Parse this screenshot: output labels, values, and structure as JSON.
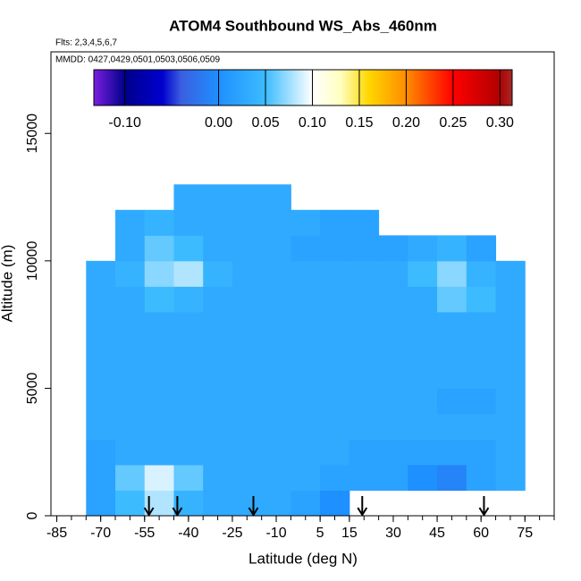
{
  "chart_data": {
    "type": "heatmap",
    "title": "ATOM4 Southbound WS_Abs_460nm",
    "subtitle": "Flts: 2,3,4,5,6,7",
    "annotation": "MMDD: 0427,0429,0501,0503,0506,0509",
    "xlabel": "Latitude (deg N)",
    "ylabel": "Altitude (m)",
    "xlim": [
      -87,
      85
    ],
    "ylim": [
      0,
      18200
    ],
    "xticks": [
      -85,
      -70,
      -55,
      -40,
      -25,
      -10,
      5,
      15,
      30,
      45,
      60,
      75
    ],
    "xminorticks": [
      -85,
      -80,
      -75,
      -70,
      -65,
      -60,
      -55,
      -50,
      -45,
      -40,
      -35,
      -30,
      -25,
      -20,
      -15,
      -10,
      -5,
      0,
      5,
      10,
      15,
      20,
      25,
      30,
      35,
      40,
      45,
      50,
      55,
      60,
      65,
      70,
      75,
      80,
      85
    ],
    "yticks": [
      0,
      5000,
      10000,
      15000
    ],
    "x_edges": [
      -75,
      -65,
      -55,
      -45,
      -35,
      -25,
      -15,
      -5,
      5,
      15,
      25,
      35,
      45,
      55,
      65,
      75
    ],
    "y_edges": [
      0,
      1000,
      2000,
      3000,
      4000,
      5000,
      6000,
      7000,
      8000,
      9000,
      10000,
      11000,
      12000,
      13000
    ],
    "z": [
      [
        0.02,
        0.05,
        0.08,
        0.04,
        0.03,
        0.03,
        0.03,
        0.02,
        0.0,
        null,
        null,
        null,
        null,
        null,
        null
      ],
      [
        0.02,
        0.06,
        0.09,
        0.06,
        0.03,
        0.03,
        0.03,
        0.03,
        0.02,
        0.02,
        0.02,
        0.0,
        -0.01,
        0.02,
        0.03
      ],
      [
        0.02,
        0.03,
        0.03,
        0.03,
        0.03,
        0.03,
        0.03,
        0.03,
        0.03,
        0.02,
        0.02,
        0.02,
        0.02,
        0.02,
        0.03
      ],
      [
        0.03,
        0.03,
        0.03,
        0.03,
        0.03,
        0.03,
        0.03,
        0.03,
        0.03,
        0.03,
        0.03,
        0.03,
        0.03,
        0.03,
        0.03
      ],
      [
        0.03,
        0.03,
        0.03,
        0.03,
        0.03,
        0.03,
        0.03,
        0.03,
        0.03,
        0.03,
        0.03,
        0.03,
        0.02,
        0.02,
        0.03
      ],
      [
        0.03,
        0.03,
        0.03,
        0.03,
        0.03,
        0.03,
        0.03,
        0.03,
        0.03,
        0.03,
        0.03,
        0.03,
        0.03,
        0.03,
        0.03
      ],
      [
        0.03,
        0.03,
        0.03,
        0.03,
        0.03,
        0.03,
        0.03,
        0.03,
        0.03,
        0.03,
        0.03,
        0.03,
        0.03,
        0.03,
        0.03
      ],
      [
        0.03,
        0.03,
        0.03,
        0.03,
        0.03,
        0.03,
        0.03,
        0.03,
        0.03,
        0.03,
        0.03,
        0.03,
        0.03,
        0.03,
        0.03
      ],
      [
        0.03,
        0.03,
        0.05,
        0.04,
        0.03,
        0.03,
        0.03,
        0.03,
        0.03,
        0.03,
        0.03,
        0.03,
        0.06,
        0.05,
        0.03
      ],
      [
        0.03,
        0.04,
        0.07,
        0.08,
        0.04,
        0.03,
        0.03,
        0.03,
        0.03,
        0.03,
        0.03,
        0.05,
        0.07,
        0.04,
        0.03
      ],
      [
        null,
        0.03,
        0.06,
        0.05,
        0.03,
        0.03,
        0.03,
        0.02,
        0.02,
        0.02,
        0.02,
        0.03,
        0.04,
        0.02,
        null
      ],
      [
        null,
        0.03,
        0.04,
        0.03,
        0.03,
        0.03,
        0.03,
        0.03,
        0.02,
        0.02,
        null,
        null,
        null,
        null,
        null
      ],
      [
        null,
        null,
        null,
        0.03,
        0.03,
        0.03,
        0.03,
        null,
        null,
        null,
        null,
        null,
        null,
        null,
        null
      ]
    ],
    "arrows_x": [
      -53.5,
      -43.8,
      -17.8,
      19.4,
      61
    ],
    "colorbar": {
      "lim": [
        -0.133,
        0.313
      ],
      "ticks": [
        {
          "value": -0.1,
          "label": "-0.10"
        },
        {
          "value": 0,
          "label": "0.00"
        },
        {
          "value": 0.05,
          "label": "0.05"
        },
        {
          "value": 0.1,
          "label": "0.10"
        },
        {
          "value": 0.15,
          "label": "0.15"
        },
        {
          "value": 0.2,
          "label": "0.20"
        },
        {
          "value": 0.25,
          "label": "0.25"
        },
        {
          "value": 0.3,
          "label": "0.30"
        }
      ],
      "colormap": [
        {
          "value": -0.133,
          "color": "#7a1fe0"
        },
        {
          "value": -0.1,
          "color": "#00008b"
        },
        {
          "value": -0.06,
          "color": "#0000cd"
        },
        {
          "value": -0.04,
          "color": "#3a5fe0"
        },
        {
          "value": 0,
          "color": "#1e90ff"
        },
        {
          "value": 0.05,
          "color": "#3cbcff"
        },
        {
          "value": 0.1,
          "color": "#ffffff"
        },
        {
          "value": 0.13,
          "color": "#ffffc0"
        },
        {
          "value": 0.16,
          "color": "#ffd700"
        },
        {
          "value": 0.2,
          "color": "#ff8c00"
        },
        {
          "value": 0.25,
          "color": "#ff0000"
        },
        {
          "value": 0.3,
          "color": "#b00000"
        },
        {
          "value": 0.313,
          "color": "#a52a2a"
        }
      ]
    }
  }
}
